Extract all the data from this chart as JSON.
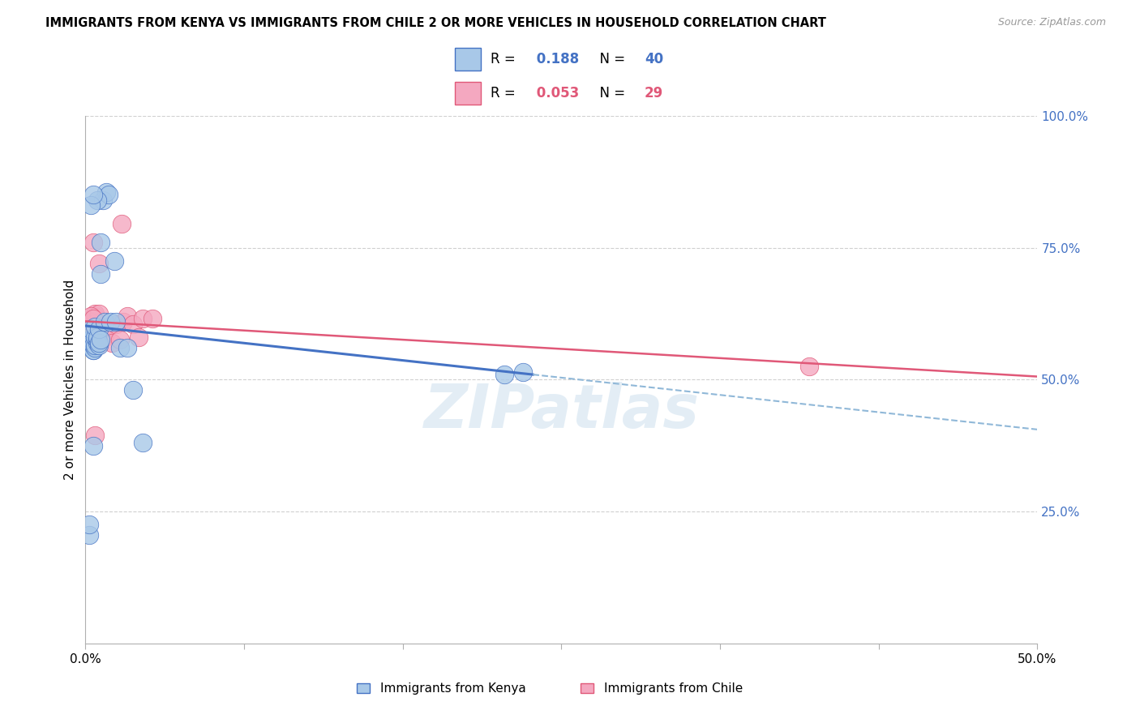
{
  "title": "IMMIGRANTS FROM KENYA VS IMMIGRANTS FROM CHILE 2 OR MORE VEHICLES IN HOUSEHOLD CORRELATION CHART",
  "source": "Source: ZipAtlas.com",
  "ylabel": "2 or more Vehicles in Household",
  "right_ytick_labels": [
    "100.0%",
    "75.0%",
    "50.0%",
    "25.0%"
  ],
  "right_ytick_values": [
    1.0,
    0.75,
    0.5,
    0.25
  ],
  "xlim": [
    0.0,
    0.5
  ],
  "ylim": [
    0.0,
    1.0
  ],
  "kenya_R": 0.188,
  "kenya_N": 40,
  "chile_R": 0.053,
  "chile_N": 29,
  "kenya_color": "#a8c8e8",
  "chile_color": "#f4a8c0",
  "kenya_line_color": "#4472c4",
  "chile_line_color": "#e05878",
  "dashed_line_color": "#90b8d8",
  "watermark": "ZIPatlas",
  "kenya_x": [
    0.002,
    0.002,
    0.002,
    0.003,
    0.003,
    0.003,
    0.003,
    0.004,
    0.004,
    0.004,
    0.005,
    0.005,
    0.005,
    0.005,
    0.006,
    0.006,
    0.006,
    0.007,
    0.007,
    0.007,
    0.008,
    0.008,
    0.008,
    0.009,
    0.01,
    0.011,
    0.012,
    0.013,
    0.015,
    0.016,
    0.018,
    0.022,
    0.025,
    0.03,
    0.006,
    0.004,
    0.22,
    0.23,
    0.003,
    0.004
  ],
  "kenya_y": [
    0.205,
    0.225,
    0.575,
    0.565,
    0.565,
    0.575,
    0.595,
    0.555,
    0.555,
    0.565,
    0.56,
    0.565,
    0.58,
    0.6,
    0.57,
    0.575,
    0.58,
    0.565,
    0.57,
    0.595,
    0.575,
    0.7,
    0.76,
    0.84,
    0.61,
    0.855,
    0.85,
    0.61,
    0.725,
    0.61,
    0.56,
    0.56,
    0.48,
    0.38,
    0.84,
    0.375,
    0.51,
    0.515,
    0.83,
    0.85
  ],
  "chile_x": [
    0.002,
    0.003,
    0.003,
    0.004,
    0.004,
    0.005,
    0.005,
    0.005,
    0.006,
    0.007,
    0.007,
    0.008,
    0.009,
    0.01,
    0.012,
    0.014,
    0.016,
    0.018,
    0.02,
    0.022,
    0.025,
    0.028,
    0.03,
    0.035,
    0.003,
    0.004,
    0.38,
    0.019,
    0.005
  ],
  "chile_y": [
    0.575,
    0.57,
    0.61,
    0.565,
    0.76,
    0.6,
    0.62,
    0.625,
    0.565,
    0.72,
    0.625,
    0.6,
    0.595,
    0.58,
    0.6,
    0.57,
    0.605,
    0.575,
    0.61,
    0.62,
    0.605,
    0.58,
    0.615,
    0.615,
    0.62,
    0.615,
    0.525,
    0.795,
    0.395
  ]
}
